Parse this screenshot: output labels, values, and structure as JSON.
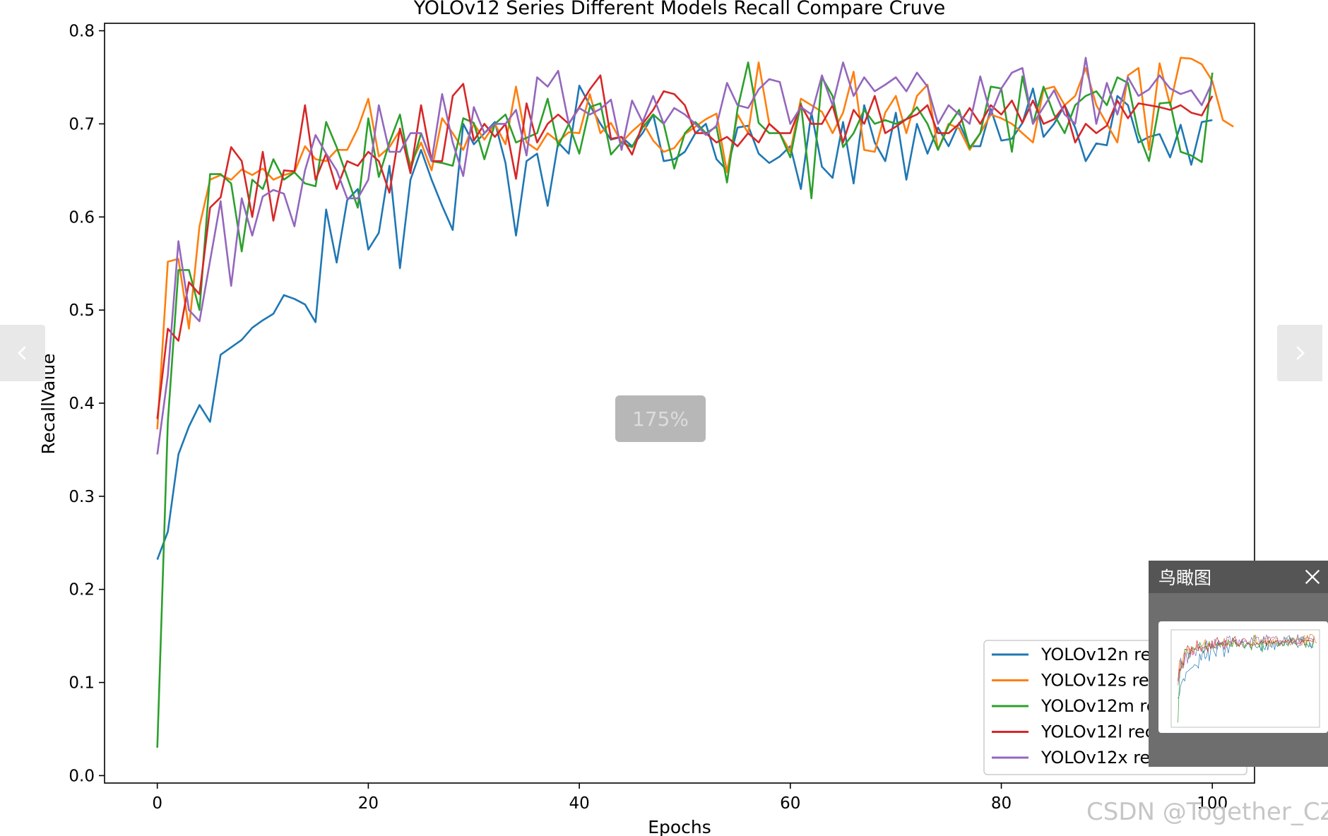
{
  "chart_data": {
    "type": "line",
    "title": "YOLOv12 Series Different Models Recall Compare Cruve",
    "xlabel": "Epochs",
    "ylabel": "RecallValue",
    "xlim": [
      -5,
      104
    ],
    "ylim": [
      -0.008,
      0.808
    ],
    "xticks": [
      0,
      20,
      40,
      60,
      80,
      100
    ],
    "xtick_labels": [
      "0",
      "20",
      "40",
      "60",
      "80",
      "100"
    ],
    "yticks": [
      0.0,
      0.1,
      0.2,
      0.3,
      0.4,
      0.5,
      0.6,
      0.7,
      0.8
    ],
    "ytick_labels": [
      "0.0",
      "0.1",
      "0.2",
      "0.3",
      "0.4",
      "0.5",
      "0.6",
      "0.7",
      "0.8"
    ],
    "grid": false,
    "legend_position": "lower-right",
    "x_start": 0,
    "series": [
      {
        "name": "YOLOv12n recall cruve",
        "color": "#1f77b4",
        "values": [
          0.232,
          0.262,
          0.345,
          0.375,
          0.398,
          0.38,
          0.452,
          0.46,
          0.468,
          0.481,
          0.489,
          0.496,
          0.516,
          0.512,
          0.506,
          0.487,
          0.608,
          0.551,
          0.618,
          0.63,
          0.565,
          0.583,
          0.655,
          0.545,
          0.64,
          0.672,
          0.64,
          0.612,
          0.586,
          0.7,
          0.678,
          0.69,
          0.702,
          0.658,
          0.58,
          0.66,
          0.668,
          0.612,
          0.68,
          0.668,
          0.741,
          0.72,
          0.7,
          0.683,
          0.686,
          0.676,
          0.69,
          0.71,
          0.66,
          0.662,
          0.67,
          0.69,
          0.7,
          0.662,
          0.65,
          0.696,
          0.698,
          0.668,
          0.658,
          0.665,
          0.676,
          0.63,
          0.712,
          0.654,
          0.642,
          0.702,
          0.636,
          0.72,
          0.68,
          0.66,
          0.712,
          0.64,
          0.7,
          0.668,
          0.696,
          0.676,
          0.701,
          0.676,
          0.676,
          0.716,
          0.682,
          0.684,
          0.701,
          0.738,
          0.686,
          0.7,
          0.72,
          0.696,
          0.66,
          0.679,
          0.677,
          0.73,
          0.72,
          0.68,
          0.686,
          0.689,
          0.664,
          0.699,
          0.656,
          0.702,
          0.704
        ]
      },
      {
        "name": "YOLOv12s recall cruve",
        "color": "#ff7f0e",
        "values": [
          0.372,
          0.552,
          0.555,
          0.48,
          0.59,
          0.64,
          0.645,
          0.64,
          0.651,
          0.645,
          0.652,
          0.64,
          0.645,
          0.648,
          0.676,
          0.662,
          0.66,
          0.672,
          0.672,
          0.695,
          0.727,
          0.665,
          0.675,
          0.693,
          0.656,
          0.68,
          0.65,
          0.706,
          0.69,
          0.672,
          0.7,
          0.683,
          0.7,
          0.678,
          0.74,
          0.68,
          0.672,
          0.69,
          0.681,
          0.691,
          0.69,
          0.732,
          0.69,
          0.701,
          0.68,
          0.692,
          0.702,
          0.682,
          0.67,
          0.674,
          0.689,
          0.697,
          0.705,
          0.711,
          0.648,
          0.71,
          0.69,
          0.766,
          0.7,
          0.69,
          0.67,
          0.727,
          0.72,
          0.713,
          0.69,
          0.712,
          0.756,
          0.672,
          0.67,
          0.712,
          0.73,
          0.69,
          0.73,
          0.742,
          0.672,
          0.7,
          0.695,
          0.672,
          0.69,
          0.71,
          0.706,
          0.7,
          0.69,
          0.68,
          0.737,
          0.74,
          0.72,
          0.73,
          0.76,
          0.72,
          0.7,
          0.68,
          0.752,
          0.76,
          0.672,
          0.765,
          0.72,
          0.771,
          0.77,
          0.764,
          0.746,
          0.704,
          0.697
        ]
      },
      {
        "name": "YOLOv12m recall cruve",
        "color": "#2ca02c",
        "values": [
          0.03,
          0.38,
          0.543,
          0.543,
          0.5,
          0.646,
          0.646,
          0.636,
          0.563,
          0.64,
          0.63,
          0.662,
          0.64,
          0.648,
          0.636,
          0.633,
          0.702,
          0.675,
          0.643,
          0.61,
          0.706,
          0.643,
          0.68,
          0.71,
          0.65,
          0.69,
          0.66,
          0.658,
          0.655,
          0.706,
          0.701,
          0.662,
          0.7,
          0.71,
          0.68,
          0.685,
          0.69,
          0.727,
          0.676,
          0.7,
          0.668,
          0.718,
          0.722,
          0.667,
          0.68,
          0.675,
          0.696,
          0.71,
          0.7,
          0.652,
          0.69,
          0.702,
          0.69,
          0.697,
          0.637,
          0.716,
          0.766,
          0.701,
          0.69,
          0.69,
          0.664,
          0.722,
          0.62,
          0.75,
          0.73,
          0.675,
          0.69,
          0.715,
          0.7,
          0.704,
          0.7,
          0.705,
          0.718,
          0.7,
          0.672,
          0.698,
          0.715,
          0.674,
          0.69,
          0.74,
          0.738,
          0.67,
          0.751,
          0.7,
          0.74,
          0.71,
          0.69,
          0.72,
          0.73,
          0.735,
          0.72,
          0.75,
          0.744,
          0.69,
          0.66,
          0.722,
          0.723,
          0.67,
          0.666,
          0.659,
          0.755
        ]
      },
      {
        "name": "YOLOv12l recall cruve",
        "color": "#d62728",
        "values": [
          0.383,
          0.48,
          0.467,
          0.53,
          0.517,
          0.61,
          0.621,
          0.675,
          0.66,
          0.6,
          0.67,
          0.596,
          0.65,
          0.649,
          0.72,
          0.64,
          0.668,
          0.63,
          0.66,
          0.655,
          0.67,
          0.66,
          0.626,
          0.695,
          0.647,
          0.72,
          0.66,
          0.66,
          0.73,
          0.743,
          0.682,
          0.7,
          0.686,
          0.7,
          0.641,
          0.722,
          0.68,
          0.7,
          0.71,
          0.7,
          0.718,
          0.737,
          0.752,
          0.684,
          0.686,
          0.667,
          0.7,
          0.715,
          0.735,
          0.732,
          0.72,
          0.69,
          0.69,
          0.68,
          0.686,
          0.676,
          0.69,
          0.68,
          0.7,
          0.69,
          0.69,
          0.72,
          0.7,
          0.7,
          0.72,
          0.68,
          0.715,
          0.7,
          0.73,
          0.69,
          0.697,
          0.705,
          0.71,
          0.72,
          0.69,
          0.69,
          0.7,
          0.717,
          0.7,
          0.72,
          0.71,
          0.725,
          0.701,
          0.725,
          0.7,
          0.705,
          0.72,
          0.68,
          0.7,
          0.69,
          0.698,
          0.725,
          0.706,
          0.722,
          0.72,
          0.718,
          0.715,
          0.72,
          0.712,
          0.709,
          0.73
        ]
      },
      {
        "name": "YOLOv12x recall cruve",
        "color": "#9467bd",
        "values": [
          0.345,
          0.43,
          0.574,
          0.5,
          0.488,
          0.553,
          0.617,
          0.526,
          0.62,
          0.58,
          0.622,
          0.629,
          0.625,
          0.59,
          0.65,
          0.688,
          0.668,
          0.65,
          0.62,
          0.62,
          0.64,
          0.72,
          0.67,
          0.67,
          0.69,
          0.69,
          0.66,
          0.732,
          0.68,
          0.644,
          0.718,
          0.69,
          0.7,
          0.7,
          0.715,
          0.666,
          0.75,
          0.74,
          0.757,
          0.7,
          0.717,
          0.71,
          0.716,
          0.726,
          0.672,
          0.725,
          0.702,
          0.73,
          0.7,
          0.717,
          0.71,
          0.7,
          0.688,
          0.698,
          0.744,
          0.72,
          0.717,
          0.737,
          0.748,
          0.745,
          0.7,
          0.718,
          0.71,
          0.752,
          0.72,
          0.766,
          0.73,
          0.75,
          0.735,
          0.742,
          0.75,
          0.735,
          0.755,
          0.74,
          0.7,
          0.72,
          0.71,
          0.7,
          0.751,
          0.71,
          0.738,
          0.755,
          0.76,
          0.7,
          0.718,
          0.736,
          0.71,
          0.7,
          0.771,
          0.7,
          0.744,
          0.71,
          0.75,
          0.73,
          0.737,
          0.752,
          0.738,
          0.732,
          0.736,
          0.72,
          0.745
        ]
      }
    ]
  },
  "viewer": {
    "zoom_label": "175%",
    "overview_title": "鸟瞰图",
    "watermark": "CSDN @Together_CZ"
  }
}
